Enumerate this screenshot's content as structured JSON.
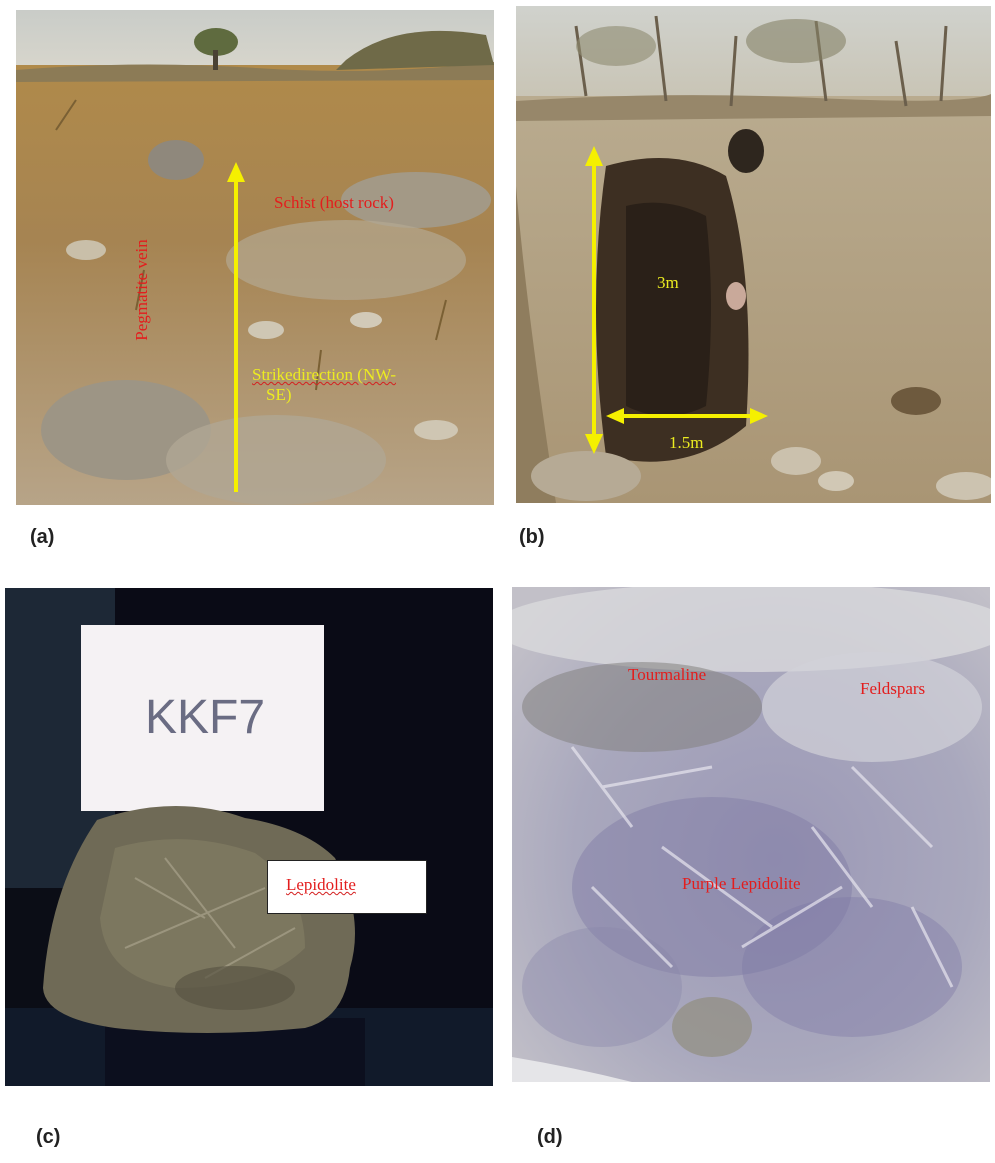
{
  "panels": {
    "a": {
      "caption": "(a)",
      "labels": {
        "schist": "Schist (host rock)",
        "vein": "Pegmatite vein",
        "strike_line1": "Strikedirection (NW-",
        "strike_line2": "SE)"
      }
    },
    "b": {
      "caption": "(b)",
      "labels": {
        "depth": "3m",
        "width": "1.5m"
      }
    },
    "c": {
      "caption": "(c)",
      "tag_text": "KKF7",
      "labels": {
        "lepidolite": "Lepidolite"
      }
    },
    "d": {
      "caption": "(d)",
      "labels": {
        "tourmaline": "Tourmaline",
        "feldspars": "Feldspars",
        "purple_lepidolite": "Purple Lepidolite"
      }
    }
  },
  "colors": {
    "label_red": "#e31d1d",
    "arrow_yellow": "#f5f000"
  }
}
